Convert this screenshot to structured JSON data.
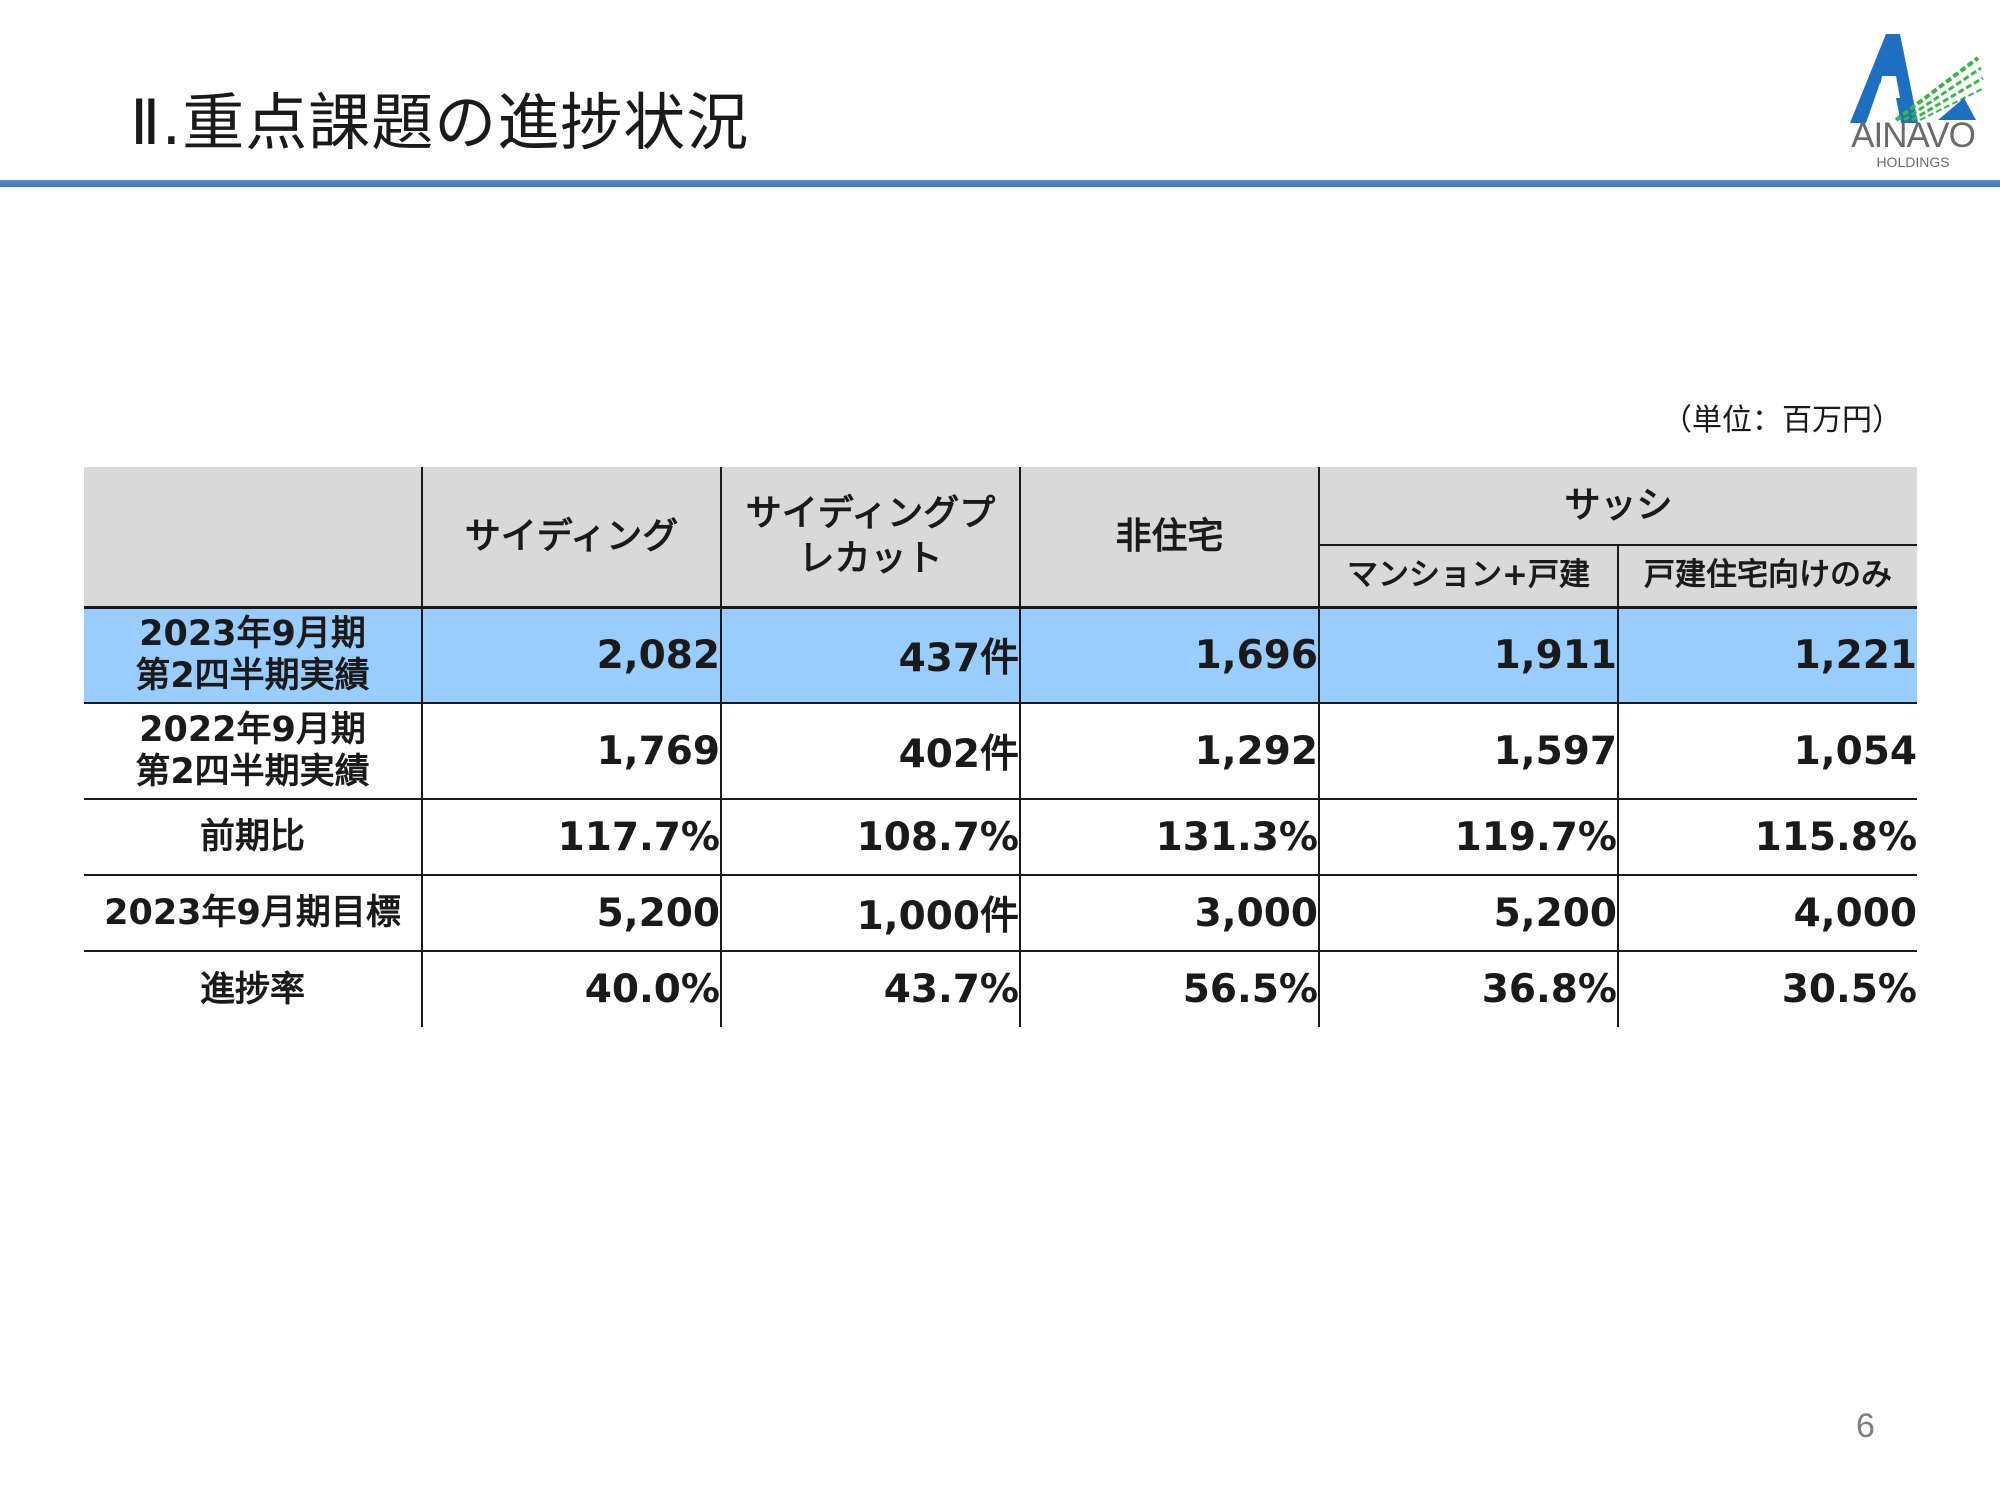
{
  "header": {
    "title": "Ⅱ.重点課題の進捗状況",
    "logo_text": "AINAVO",
    "logo_sub": "HOLDINGS"
  },
  "unit_note": "（単位：百万円）",
  "table": {
    "columns": [
      "サイディング",
      "サイディングプレカット",
      "非住宅",
      "サッシ"
    ],
    "col1": "サイディング",
    "col2_line1": "サイディングプ",
    "col2_line2": "レカット",
    "col3": "非住宅",
    "col4": "サッシ",
    "col4_sub1": "マンション+戸建",
    "col4_sub2": "戸建住宅向けのみ",
    "rows": [
      {
        "label_line1": "2023年9月期",
        "label_line2": "第2四半期実績",
        "values": [
          "2,082",
          "437件",
          "1,696",
          "1,911",
          "1,221"
        ],
        "highlighted": true
      },
      {
        "label_line1": "2022年9月期",
        "label_line2": "第2四半期実績",
        "values": [
          "1,769",
          "402件",
          "1,292",
          "1,597",
          "1,054"
        ],
        "highlighted": false
      },
      {
        "label_line1": "前期比",
        "values": [
          "117.7%",
          "108.7%",
          "131.3%",
          "119.7%",
          "115.8%"
        ],
        "highlighted": false
      },
      {
        "label_line1": "2023年9月期目標",
        "values": [
          "5,200",
          "1,000件",
          "3,000",
          "5,200",
          "4,000"
        ],
        "highlighted": false
      },
      {
        "label_line1": "進捗率",
        "values": [
          "40.0%",
          "43.7%",
          "56.5%",
          "36.8%",
          "30.5%"
        ],
        "highlighted": false
      }
    ]
  },
  "page_number": "6",
  "colors": {
    "highlight_row": "#99ccff",
    "header_bg": "#d9d9d9",
    "title_rule": "#3f75c3",
    "logo_blue": "#1f6fc0",
    "logo_green": "#3bb54a"
  }
}
